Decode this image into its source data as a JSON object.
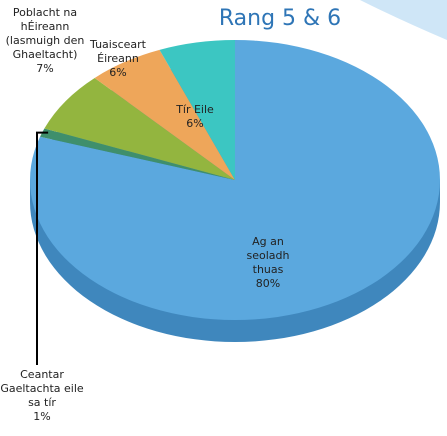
{
  "chart_data": {
    "type": "pie3d",
    "title": "Rang 5 & 6",
    "categories": [
      "Ag an seoladh thuas",
      "Ceantar Gaeltachta eile sa tír",
      "Poblacht na hÉireann (lasmuigh den Ghaeltacht)",
      "Tuaisceart Éireann",
      "Tír Eile"
    ],
    "values": [
      80,
      1,
      7,
      6,
      6
    ],
    "value_labels": [
      "80%",
      "1%",
      "7%",
      "6%",
      "6%"
    ],
    "colors": [
      "#5ba8de",
      "#3f8f6c",
      "#93b53f",
      "#eea65a",
      "#3cc6c2"
    ]
  }
}
